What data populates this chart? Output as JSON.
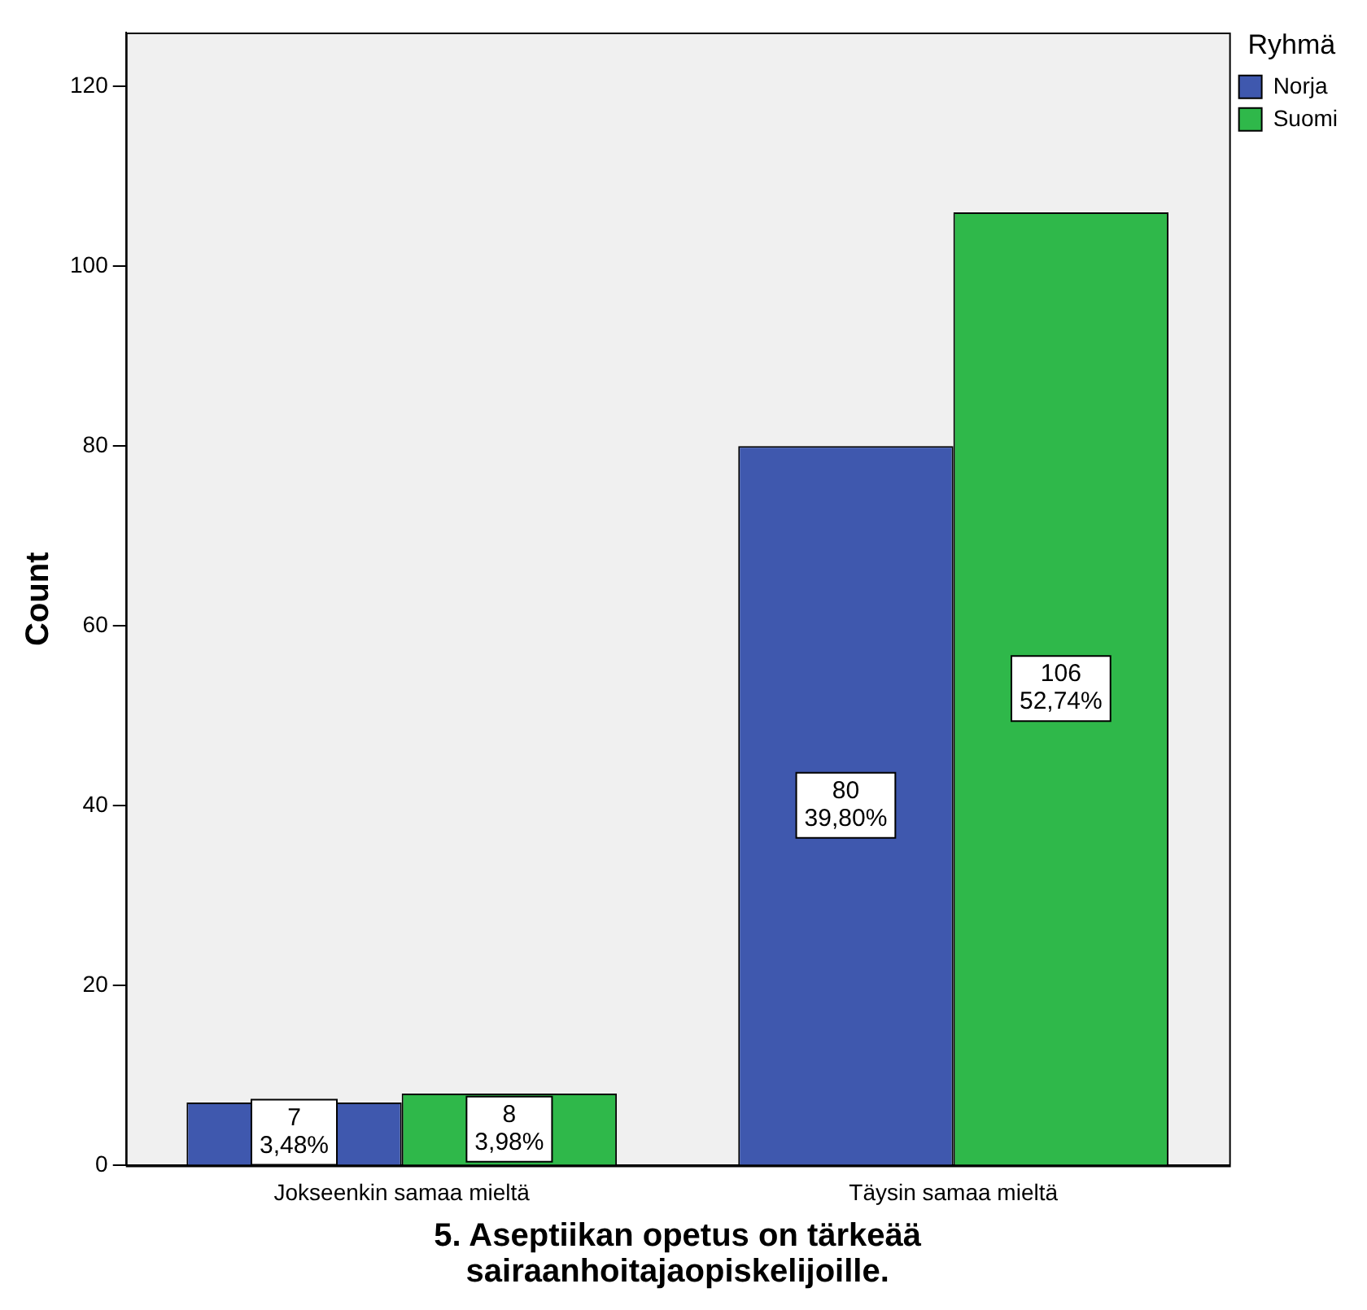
{
  "chart_data": {
    "type": "bar",
    "xlabel": "5. Aseptiikan opetus on tärkeää sairaanhoitajaopiskelijoille.",
    "ylabel": "Count",
    "legend_title": "Ryhmä",
    "legend": "top right",
    "grid": false,
    "categories": [
      "Jokseenkin samaa mieltä",
      "Täysin samaa mieltä"
    ],
    "series": [
      {
        "name": "Norja",
        "color": "#3f58ae",
        "values": [
          7,
          80
        ],
        "value_labels": [
          "7\n3,48%",
          "80\n39,80%"
        ]
      },
      {
        "name": "Suomi",
        "color": "#2fb84a",
        "values": [
          8,
          106
        ],
        "value_labels": [
          "8\n3,98%",
          "106\n52,74%"
        ]
      }
    ],
    "ylim": [
      0,
      126
    ],
    "yticks": [
      0,
      20,
      40,
      60,
      80,
      100,
      120
    ]
  }
}
